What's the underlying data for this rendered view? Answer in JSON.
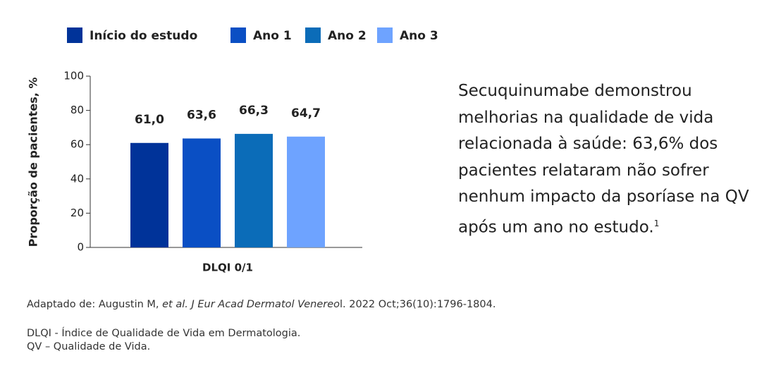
{
  "chart_data": {
    "type": "bar",
    "categories": [
      "DLQI 0/1"
    ],
    "y_label": "Proporção de pacientes, %",
    "series": [
      {
        "name": "Início do estudo",
        "color": "#003399",
        "values": [
          61.0
        ],
        "value_labels": [
          "61,0"
        ]
      },
      {
        "name": "Ano 1",
        "color": "#0a4fc4",
        "values": [
          63.6
        ],
        "value_labels": [
          "63,6"
        ]
      },
      {
        "name": "Ano 2",
        "color": "#0b6cb8",
        "values": [
          66.3
        ],
        "value_labels": [
          "66,3"
        ]
      },
      {
        "name": "Ano 3",
        "color": "#6ea3ff",
        "values": [
          64.7
        ],
        "value_labels": [
          "64,7"
        ]
      }
    ],
    "ylim": [
      0,
      100
    ],
    "yticks": [
      0,
      20,
      40,
      60,
      80,
      100
    ]
  },
  "text": {
    "summary": "Secuquinumabe demonstrou melhorias na qualidade de vida relacionada à saúde: 63,6% dos pacientes relataram não sofrer nenhum impacto da psoríase na QV após um ano no estudo.",
    "summary_ref": "1",
    "citation": [
      "Adaptado de: Augustin M, ",
      "et al. J Eur Acad Dermatol Venereo",
      "l. 2022 Oct;36(10):1796-1804."
    ],
    "footnotes": [
      "DLQI - Índice de Qualidade de Vida em Dermatologia.",
      "QV – Qualidade de Vida."
    ]
  }
}
